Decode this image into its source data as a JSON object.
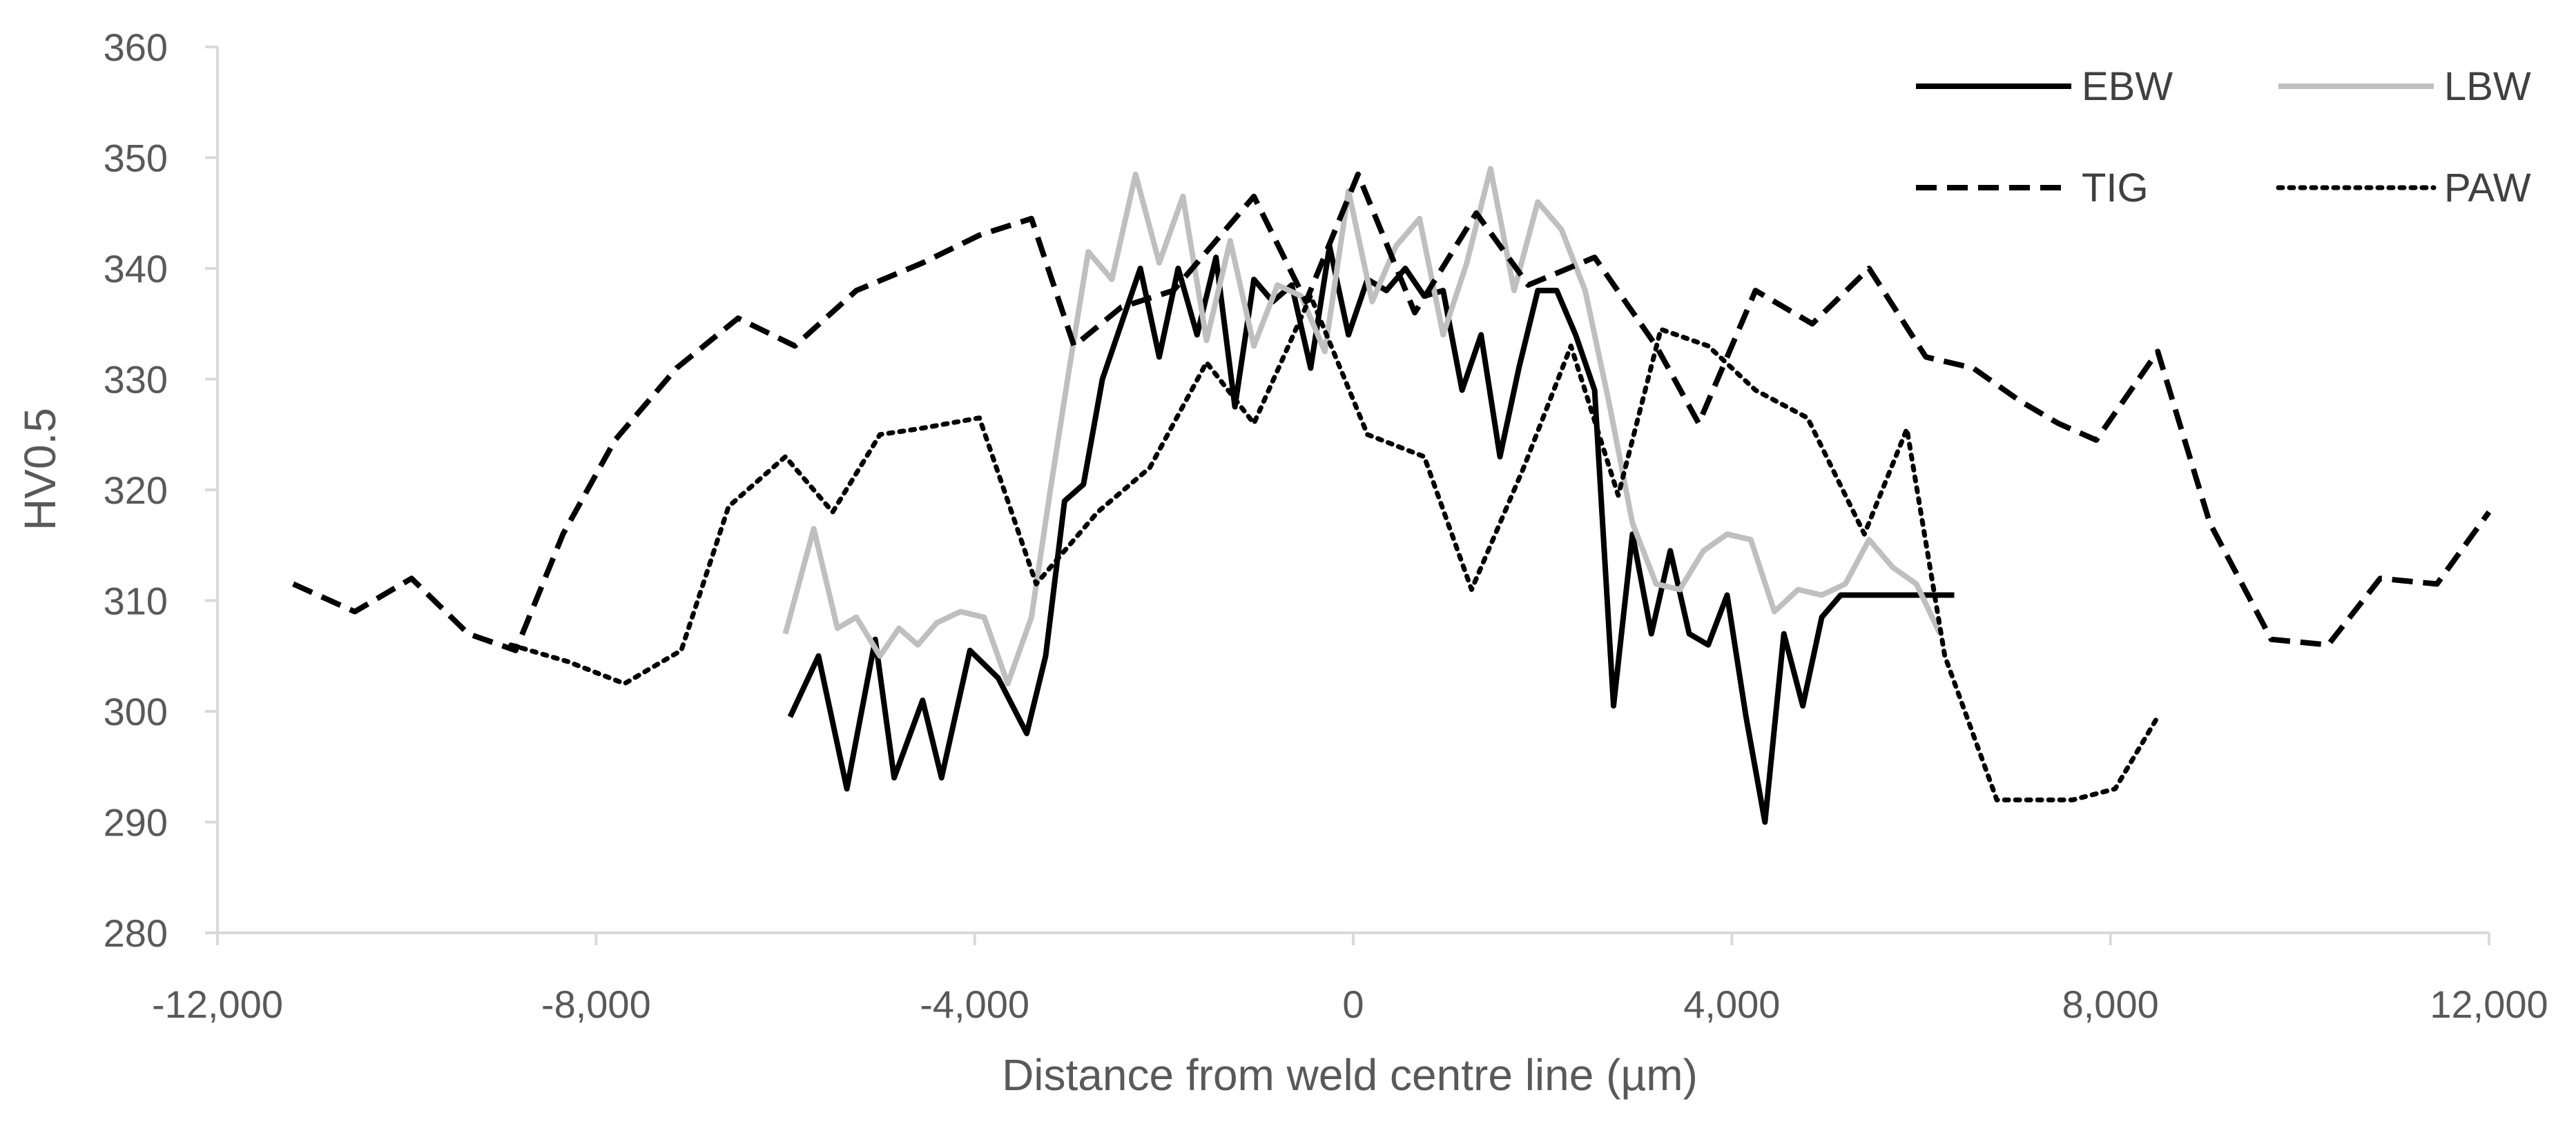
{
  "chart_data": {
    "type": "line",
    "title": "",
    "xlabel": "Distance from weld centre line (µm)",
    "ylabel": "HV0.5",
    "xlim": [
      -12000,
      12000
    ],
    "ylim": [
      280,
      360
    ],
    "x_ticks": [
      -12000,
      -8000,
      -4000,
      0,
      4000,
      8000,
      12000
    ],
    "x_tick_labels": [
      "-12,000",
      "-8,000",
      "-4,000",
      "0",
      "4,000",
      "8,000",
      "12,000"
    ],
    "y_ticks": [
      280,
      290,
      300,
      310,
      320,
      330,
      340,
      350,
      360
    ],
    "y_tick_labels": [
      "280",
      "290",
      "300",
      "310",
      "320",
      "330",
      "340",
      "350",
      "360"
    ],
    "grid": false,
    "legend_position": "top-right",
    "series": [
      {
        "name": "EBW",
        "color": "#000000",
        "dash": "solid",
        "x": [
          -5950,
          -5650,
          -5350,
          -5050,
          -4850,
          -4550,
          -4350,
          -4050,
          -3750,
          -3450,
          -3250,
          -3050,
          -2850,
          -2650,
          -2450,
          -2250,
          -2050,
          -1850,
          -1650,
          -1450,
          -1250,
          -1050,
          -850,
          -650,
          -450,
          -250,
          -50,
          150,
          350,
          550,
          750,
          950,
          1150,
          1350,
          1550,
          1750,
          1950,
          2150,
          2350,
          2550,
          2750,
          2950,
          3150,
          3350,
          3550,
          3750,
          3950,
          4150,
          4350,
          4550,
          4750,
          4950,
          5150,
          5350,
          5550,
          5750,
          5950,
          6150,
          6350
        ],
        "y": [
          299.5,
          305,
          293,
          306.5,
          294,
          301,
          294,
          305.5,
          303,
          298,
          305,
          319,
          320.5,
          330,
          335,
          340,
          332,
          340,
          334,
          341,
          327.5,
          339,
          337,
          338.5,
          331,
          342,
          334,
          339,
          338,
          340,
          337.5,
          338,
          329,
          334,
          323,
          331,
          338,
          338,
          334,
          329,
          300.5,
          316,
          307,
          314.5,
          307,
          306,
          310.5,
          299.5,
          290,
          307,
          300.5,
          308.5,
          310.5,
          310.5,
          310.5,
          310.5,
          310.5,
          310.5,
          310.5
        ]
      },
      {
        "name": "LBW",
        "color": "#bfbfbf",
        "dash": "solid",
        "x": [
          -6000,
          -5700,
          -5450,
          -5250,
          -5000,
          -4800,
          -4600,
          -4400,
          -4150,
          -3900,
          -3650,
          -3400,
          -3200,
          -3000,
          -2800,
          -2550,
          -2300,
          -2050,
          -1800,
          -1550,
          -1300,
          -1050,
          -800,
          -550,
          -300,
          -50,
          200,
          450,
          700,
          950,
          1200,
          1450,
          1700,
          1950,
          2200,
          2450,
          2700,
          2950,
          3200,
          3450,
          3700,
          3950,
          4200,
          4450,
          4700,
          4950,
          5200,
          5450,
          5700,
          5950,
          6200
        ],
        "y": [
          307,
          316.5,
          307.5,
          308.5,
          305,
          307.5,
          306,
          308,
          309,
          308.5,
          302.5,
          308.5,
          320,
          331,
          341.5,
          339,
          348.5,
          340.5,
          346.5,
          333.5,
          342.5,
          333,
          338.5,
          337.5,
          332.5,
          347,
          337,
          342,
          344.5,
          334,
          340.5,
          349,
          338,
          346,
          343.5,
          338,
          328,
          317,
          311.5,
          311,
          314.5,
          316,
          315.5,
          309,
          311,
          310.5,
          311.5,
          315.5,
          313,
          311.5,
          307
        ]
      },
      {
        "name": "TIG",
        "color": "#000000",
        "dash": "dashed",
        "x": [
          -11200,
          -10550,
          -9950,
          -9350,
          -8850,
          -8350,
          -7800,
          -7150,
          -6500,
          -5900,
          -5250,
          -4550,
          -3950,
          -3400,
          -2950,
          -2450,
          -1900,
          -1050,
          -500,
          50,
          650,
          1300,
          1850,
          2550,
          3200,
          3650,
          4250,
          4850,
          5450,
          6050,
          6550,
          7050,
          7450,
          7850,
          8500,
          9050,
          9700,
          10300,
          10850,
          11450,
          12000
        ],
        "y": [
          311.5,
          309,
          312,
          307,
          305.5,
          316,
          324.5,
          331,
          335.5,
          333,
          338,
          340.5,
          343,
          344.5,
          333,
          336.5,
          338,
          346.5,
          337,
          348.5,
          336,
          345,
          338.5,
          341,
          333,
          326,
          338,
          335,
          340,
          332,
          331,
          328,
          326,
          324.5,
          332.5,
          317,
          306.5,
          306,
          312,
          311.5,
          318
        ]
      },
      {
        "name": "PAW",
        "color": "#000000",
        "dash": "dotted",
        "x": [
          -8900,
          -8300,
          -7700,
          -7100,
          -6600,
          -6000,
          -5500,
          -5000,
          -4600,
          -3950,
          -3350,
          -2700,
          -2150,
          -1550,
          -1050,
          -450,
          150,
          750,
          1250,
          1800,
          2300,
          2800,
          3250,
          3750,
          4250,
          4800,
          5400,
          5850,
          6250,
          6800,
          7200,
          7600,
          8050,
          8500
        ],
        "y": [
          306,
          304.5,
          302.5,
          305.5,
          318.5,
          323,
          318,
          325,
          325.5,
          326.5,
          311.5,
          318,
          322,
          331.5,
          326,
          337.5,
          325,
          323,
          311,
          322,
          333,
          319.5,
          334.5,
          333,
          329,
          326.5,
          316,
          325.5,
          305,
          292,
          292,
          292,
          293,
          299.5
        ]
      }
    ]
  }
}
